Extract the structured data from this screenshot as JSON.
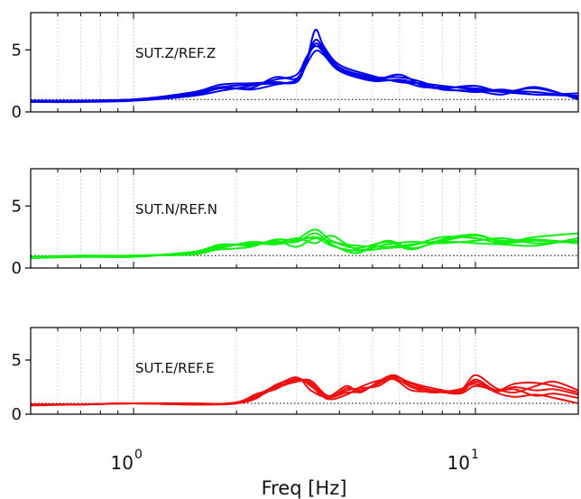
{
  "chart_data": [
    {
      "type": "line",
      "annotation": "SUT.Z/REF.Z",
      "color": "#0000ee",
      "x_scale": "log",
      "xlim": [
        0.5,
        20
      ],
      "ylim": [
        0,
        8
      ],
      "yticks": [
        0,
        5
      ],
      "reference_line": 1,
      "series": [
        {
          "x": [
            0.5,
            0.7,
            1.0,
            1.5,
            1.8,
            2.2,
            2.6,
            3.0,
            3.2,
            3.4,
            3.6,
            4.0,
            5.0,
            6.0,
            7.0,
            8.0,
            10.0,
            12.0,
            15.0,
            20.0
          ],
          "y": [
            0.9,
            0.9,
            1.0,
            1.5,
            2.0,
            1.8,
            2.2,
            2.6,
            4.0,
            6.6,
            5.3,
            3.8,
            2.9,
            2.4,
            2.3,
            2.1,
            1.8,
            1.6,
            1.4,
            1.3
          ]
        },
        {
          "x": [
            0.5,
            0.7,
            1.0,
            1.5,
            1.8,
            2.2,
            2.6,
            3.0,
            3.2,
            3.4,
            3.6,
            4.0,
            5.0,
            6.0,
            7.0,
            8.0,
            10.0,
            12.0,
            15.0,
            20.0
          ],
          "y": [
            0.8,
            0.8,
            0.9,
            1.3,
            1.7,
            2.1,
            2.6,
            3.0,
            4.4,
            5.3,
            4.8,
            3.4,
            2.6,
            3.0,
            2.1,
            1.9,
            2.1,
            1.6,
            1.9,
            1.1
          ]
        },
        {
          "x": [
            0.5,
            0.7,
            1.0,
            1.5,
            1.8,
            2.2,
            2.6,
            3.0,
            3.2,
            3.4,
            3.6,
            4.0,
            5.0,
            6.0,
            7.0,
            8.0,
            10.0,
            12.0,
            15.0,
            20.0
          ],
          "y": [
            0.9,
            0.9,
            1.0,
            1.6,
            2.2,
            2.3,
            2.4,
            2.4,
            3.8,
            4.9,
            4.6,
            3.3,
            2.5,
            2.6,
            2.2,
            1.9,
            1.6,
            1.8,
            1.4,
            1.5
          ]
        },
        {
          "x": [
            0.5,
            0.7,
            1.0,
            1.5,
            1.8,
            2.2,
            2.6,
            3.0,
            3.2,
            3.4,
            3.6,
            4.0,
            5.0,
            6.0,
            7.0,
            8.0,
            10.0,
            12.0,
            15.0,
            20.0
          ],
          "y": [
            0.9,
            0.9,
            1.0,
            1.4,
            1.9,
            1.9,
            2.8,
            2.7,
            4.2,
            5.8,
            5.1,
            3.6,
            2.8,
            2.8,
            2.4,
            1.8,
            1.7,
            1.4,
            2.0,
            1.0
          ]
        },
        {
          "x": [
            0.5,
            0.7,
            1.0,
            1.5,
            1.8,
            2.2,
            2.6,
            3.0,
            3.2,
            3.4,
            3.6,
            4.0,
            5.0,
            6.0,
            7.0,
            8.0,
            10.0,
            12.0,
            15.0,
            20.0
          ],
          "y": [
            0.8,
            0.9,
            1.0,
            1.5,
            2.0,
            2.2,
            2.3,
            2.5,
            4.1,
            5.5,
            4.9,
            3.5,
            2.7,
            2.5,
            2.0,
            2.0,
            1.9,
            1.7,
            1.6,
            1.2
          ]
        }
      ]
    },
    {
      "type": "line",
      "annotation": "SUT.N/REF.N",
      "color": "#11ee11",
      "x_scale": "log",
      "xlim": [
        0.5,
        20
      ],
      "ylim": [
        0,
        8
      ],
      "yticks": [
        0,
        5
      ],
      "reference_line": 1,
      "series": [
        {
          "x": [
            0.5,
            0.7,
            1.0,
            1.5,
            1.8,
            2.2,
            2.6,
            3.0,
            3.4,
            3.8,
            4.5,
            5.5,
            6.5,
            8.0,
            10.0,
            12.0,
            15.0,
            20.0
          ],
          "y": [
            0.9,
            0.9,
            1.0,
            1.2,
            1.7,
            2.0,
            1.9,
            2.3,
            3.1,
            2.2,
            1.6,
            2.1,
            1.5,
            2.3,
            2.7,
            2.1,
            2.5,
            2.8
          ]
        },
        {
          "x": [
            0.5,
            0.7,
            1.0,
            1.5,
            1.8,
            2.2,
            2.6,
            3.0,
            3.4,
            3.8,
            4.5,
            5.5,
            6.5,
            8.0,
            10.0,
            12.0,
            15.0,
            20.0
          ],
          "y": [
            0.8,
            0.9,
            0.9,
            1.3,
            1.9,
            1.8,
            2.2,
            1.7,
            2.4,
            1.8,
            1.4,
            1.9,
            2.1,
            2.0,
            2.2,
            2.4,
            2.0,
            2.2
          ]
        },
        {
          "x": [
            0.5,
            0.7,
            1.0,
            1.5,
            1.8,
            2.2,
            2.6,
            3.0,
            3.4,
            3.8,
            4.5,
            5.5,
            6.5,
            8.0,
            10.0,
            12.0,
            15.0,
            20.0
          ],
          "y": [
            0.9,
            1.0,
            1.0,
            1.1,
            1.6,
            2.1,
            2.0,
            2.4,
            2.0,
            2.6,
            1.5,
            1.6,
            1.8,
            2.5,
            2.4,
            2.0,
            2.2,
            2.0
          ]
        },
        {
          "x": [
            0.5,
            0.7,
            1.0,
            1.5,
            1.8,
            2.2,
            2.6,
            3.0,
            3.4,
            3.8,
            4.5,
            5.5,
            6.5,
            8.0,
            10.0,
            12.0,
            15.0,
            20.0
          ],
          "y": [
            0.9,
            0.9,
            1.0,
            1.2,
            1.8,
            1.9,
            2.1,
            2.1,
            2.8,
            1.9,
            1.2,
            2.2,
            1.6,
            2.1,
            2.0,
            1.9,
            1.8,
            2.4
          ]
        },
        {
          "x": [
            0.5,
            0.7,
            1.0,
            1.5,
            1.8,
            2.2,
            2.6,
            3.0,
            3.4,
            3.8,
            4.5,
            5.5,
            6.5,
            8.0,
            10.0,
            12.0,
            15.0,
            20.0
          ],
          "y": [
            0.8,
            1.0,
            0.9,
            1.3,
            1.5,
            1.7,
            2.3,
            2.2,
            2.5,
            2.1,
            1.8,
            1.7,
            1.9,
            2.2,
            2.6,
            2.2,
            2.3,
            2.0
          ]
        }
      ]
    },
    {
      "type": "line",
      "annotation": "SUT.E/REF.E",
      "color": "#ee1111",
      "x_scale": "log",
      "xlim": [
        0.5,
        20
      ],
      "ylim": [
        0,
        8
      ],
      "yticks": [
        0,
        5
      ],
      "reference_line": 1,
      "series": [
        {
          "x": [
            0.5,
            0.7,
            1.0,
            1.5,
            2.0,
            2.3,
            2.6,
            3.0,
            3.3,
            3.7,
            4.2,
            4.6,
            5.2,
            5.8,
            6.5,
            7.5,
            9.0,
            10.0,
            11.5,
            13.0,
            15.0,
            17.0,
            20.0
          ],
          "y": [
            0.9,
            0.9,
            1.0,
            0.9,
            1.0,
            1.8,
            2.6,
            3.4,
            2.2,
            1.6,
            2.6,
            2.0,
            3.0,
            3.6,
            2.6,
            2.2,
            2.2,
            3.6,
            2.4,
            2.0,
            2.6,
            3.0,
            2.2
          ]
        },
        {
          "x": [
            0.5,
            0.7,
            1.0,
            1.5,
            2.0,
            2.3,
            2.6,
            3.0,
            3.3,
            3.7,
            4.2,
            4.6,
            5.2,
            5.8,
            6.5,
            7.5,
            9.0,
            10.0,
            11.5,
            13.0,
            15.0,
            17.0,
            20.0
          ],
          "y": [
            0.9,
            0.9,
            1.0,
            0.9,
            1.0,
            1.6,
            2.4,
            3.0,
            3.1,
            1.7,
            2.2,
            2.4,
            2.6,
            3.4,
            2.9,
            2.4,
            2.1,
            3.2,
            2.2,
            2.8,
            2.9,
            2.6,
            2.0
          ]
        },
        {
          "x": [
            0.5,
            0.7,
            1.0,
            1.5,
            2.0,
            2.3,
            2.6,
            3.0,
            3.3,
            3.7,
            4.2,
            4.6,
            5.2,
            5.8,
            6.5,
            7.5,
            9.0,
            10.0,
            11.5,
            13.0,
            15.0,
            17.0,
            20.0
          ],
          "y": [
            0.9,
            0.9,
            1.0,
            0.9,
            1.1,
            1.9,
            2.3,
            3.3,
            2.6,
            1.4,
            1.8,
            2.5,
            3.1,
            3.2,
            2.2,
            2.1,
            2.0,
            3.0,
            2.0,
            1.6,
            1.8,
            1.5,
            1.0
          ]
        },
        {
          "x": [
            0.5,
            0.7,
            1.0,
            1.5,
            2.0,
            2.3,
            2.6,
            3.0,
            3.3,
            3.7,
            4.2,
            4.6,
            5.2,
            5.8,
            6.5,
            7.5,
            9.0,
            10.0,
            11.5,
            13.0,
            15.0,
            17.0,
            20.0
          ],
          "y": [
            0.8,
            0.9,
            1.0,
            1.0,
            1.0,
            1.7,
            2.5,
            3.1,
            2.8,
            1.5,
            2.4,
            2.2,
            2.8,
            3.5,
            2.8,
            2.2,
            1.9,
            2.6,
            2.2,
            2.3,
            1.7,
            1.9,
            1.5
          ]
        },
        {
          "x": [
            0.5,
            0.7,
            1.0,
            1.5,
            2.0,
            2.3,
            2.6,
            3.0,
            3.3,
            3.7,
            4.2,
            4.6,
            5.2,
            5.8,
            6.5,
            7.5,
            9.0,
            10.0,
            11.5,
            13.0,
            15.0,
            17.0,
            20.0
          ],
          "y": [
            0.9,
            0.9,
            1.0,
            0.9,
            1.0,
            1.5,
            2.7,
            3.2,
            2.9,
            1.6,
            2.0,
            2.1,
            2.9,
            3.3,
            2.5,
            2.0,
            2.3,
            2.8,
            2.1,
            2.5,
            2.2,
            2.3,
            1.8
          ]
        }
      ]
    }
  ],
  "axes": {
    "x_tick_base": "10",
    "x_tick_exponents": [
      "0",
      "1"
    ],
    "y_tick_labels": [
      "0",
      "5"
    ],
    "xlabel": "Freq [Hz]"
  }
}
